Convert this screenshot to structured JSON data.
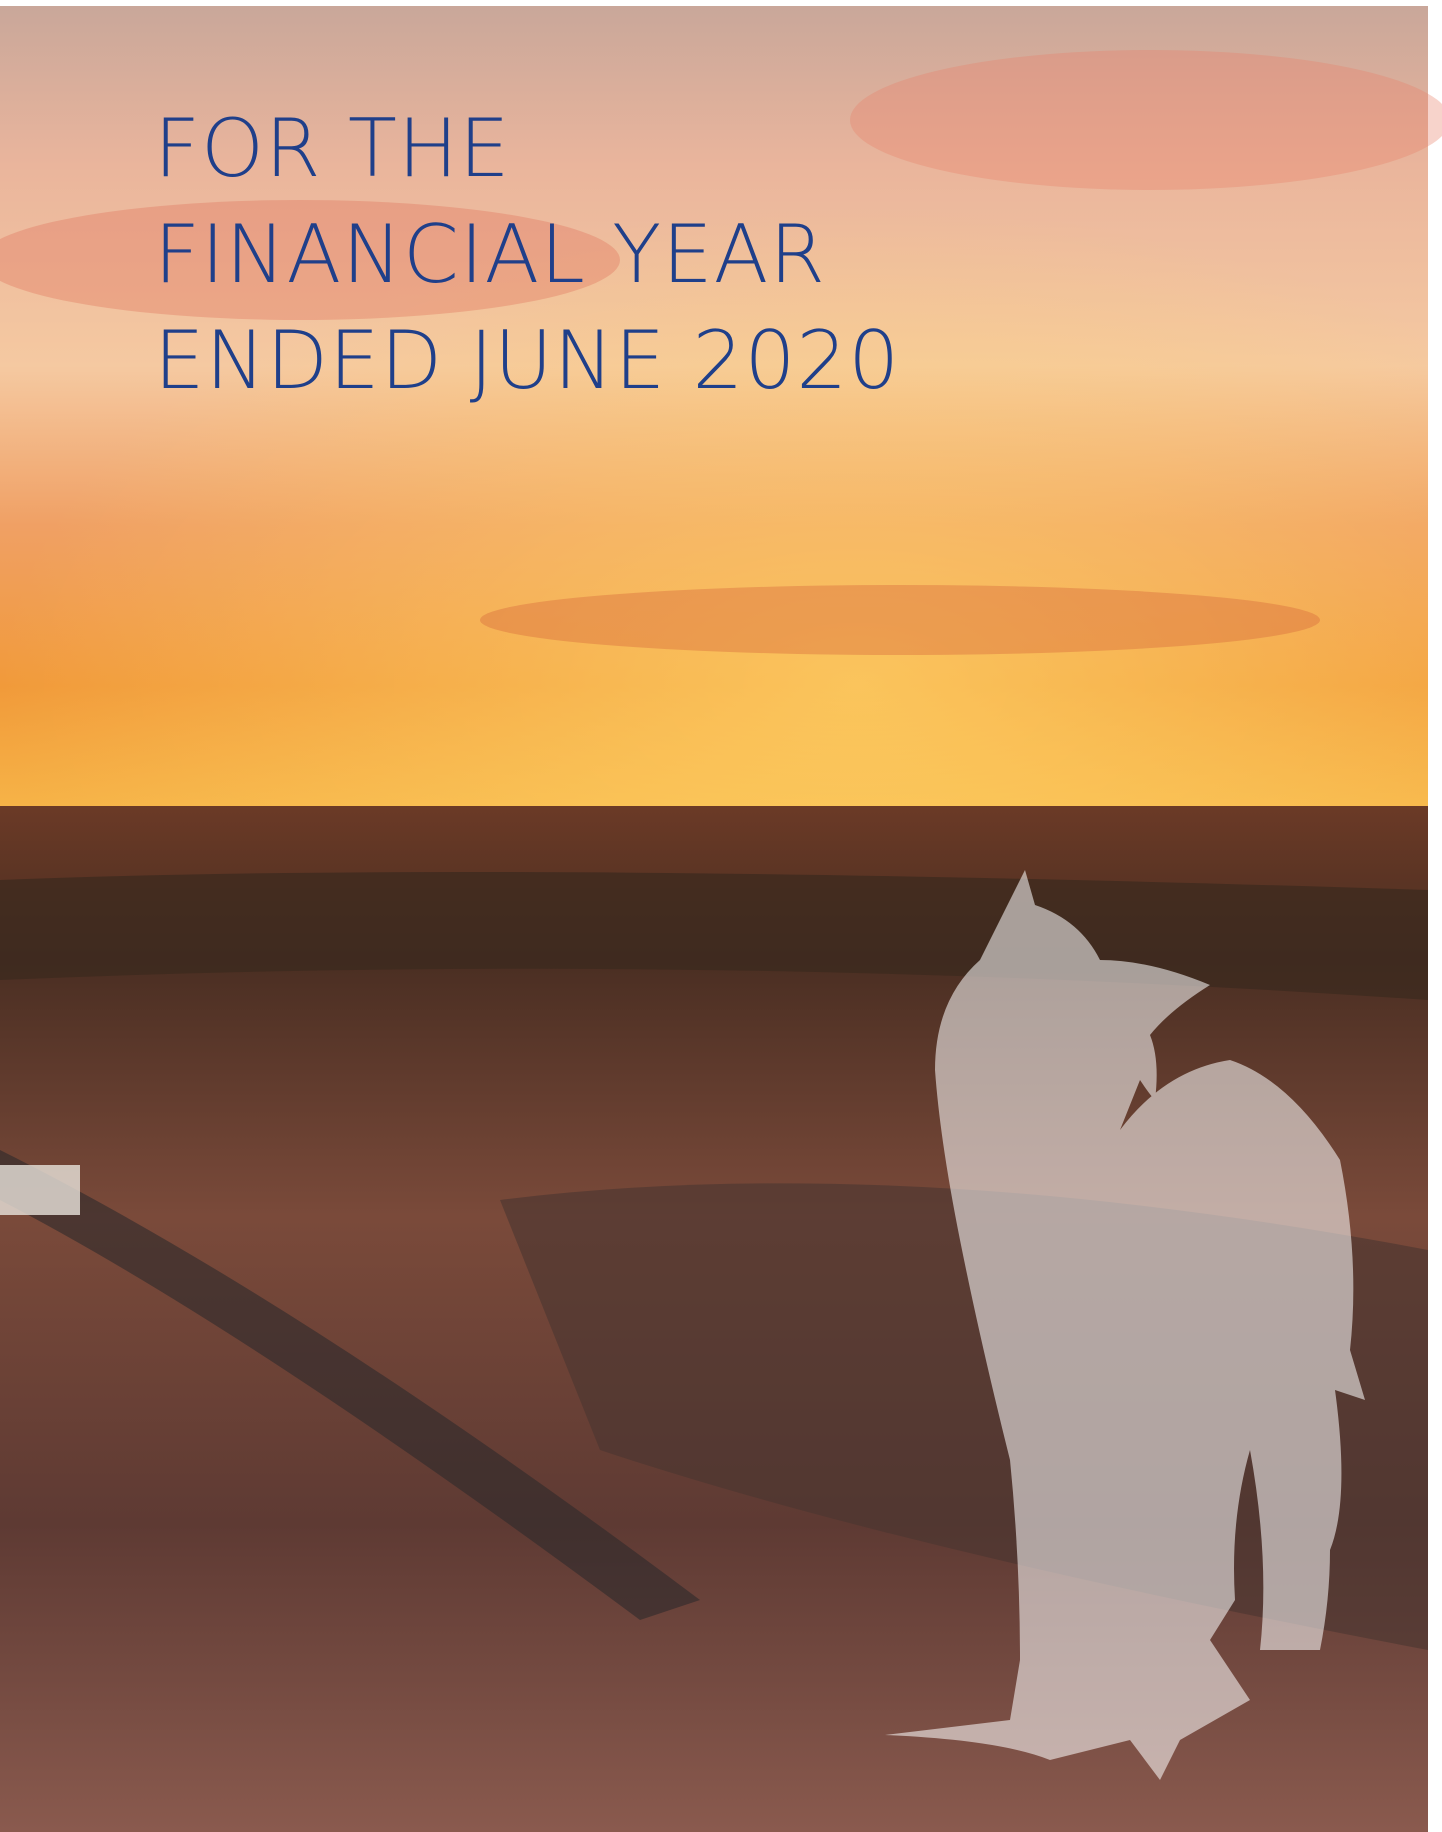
{
  "cover": {
    "title_lines": [
      "FOR THE",
      "FINANCIAL YEAR",
      "ENDED JUNE 2020"
    ]
  }
}
